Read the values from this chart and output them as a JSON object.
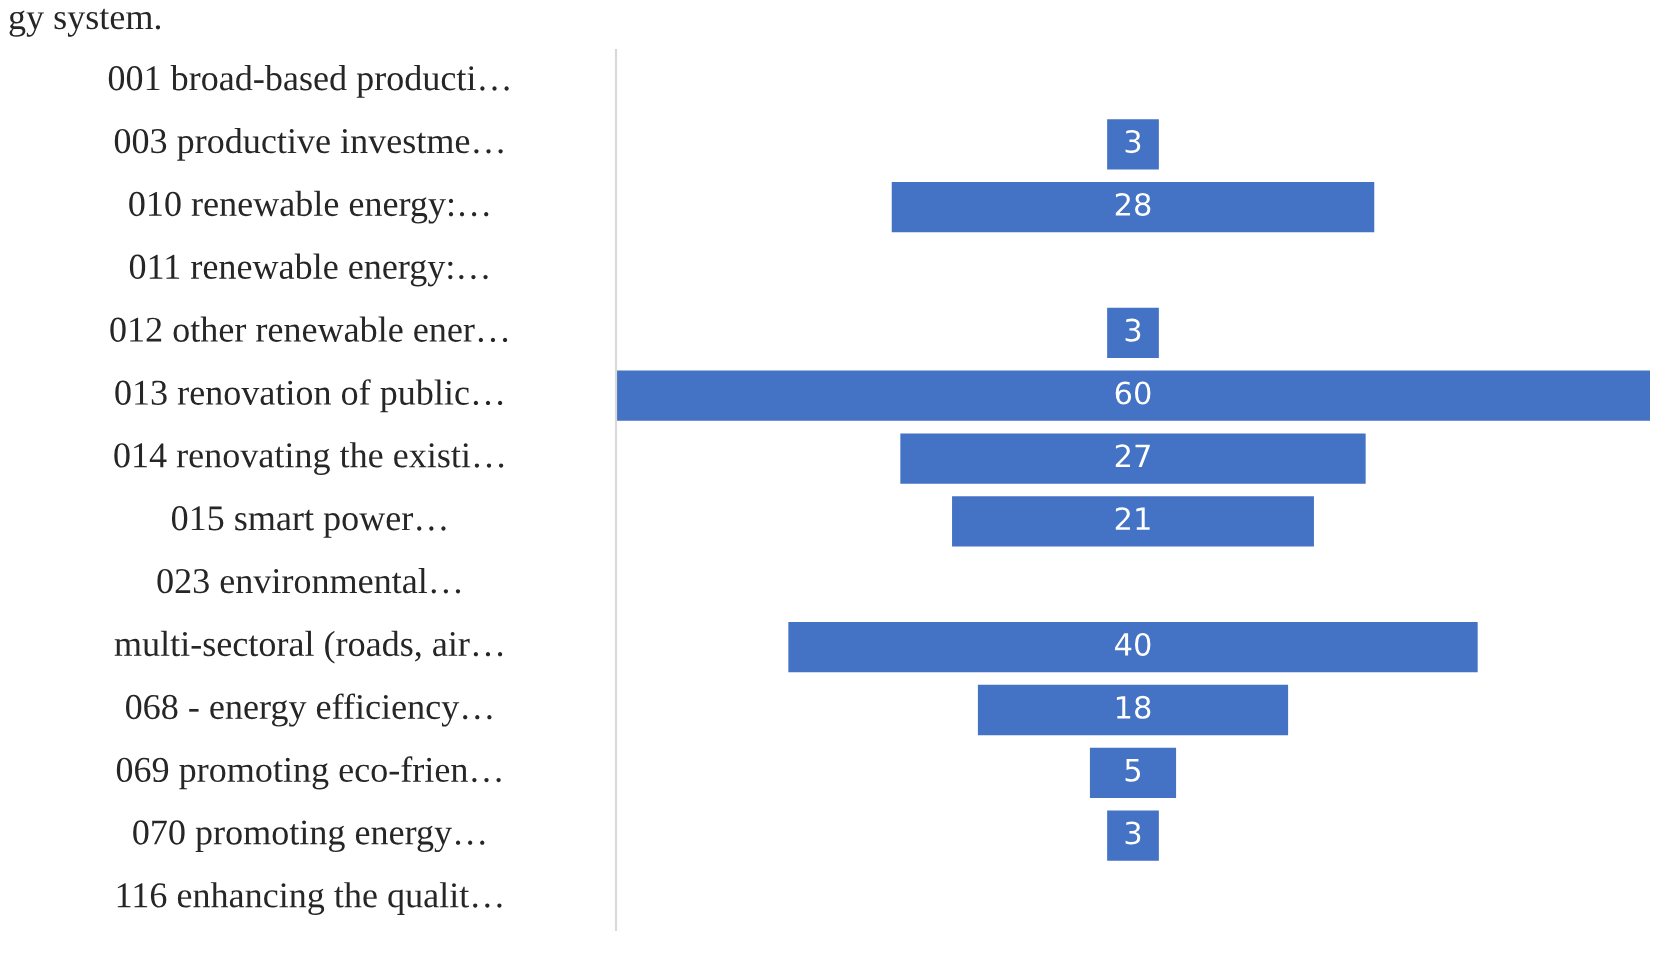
{
  "chart_data": {
    "type": "other",
    "categories": [
      "001 broad-based producti…",
      "003 productive investme…",
      "010 renewable energy:…",
      "011 renewable energy:…",
      "012 other renewable ener…",
      "013 renovation of public…",
      "014 renovating the existi…",
      "015 smart power…",
      "023 environmental…",
      "multi-sectoral (roads, air…",
      "068 - energy efficiency…",
      "069 promoting eco-frien…",
      "070 promoting energy…",
      "116 enhancing the qualit…"
    ],
    "values": [
      null,
      3,
      28,
      null,
      3,
      60,
      27,
      21,
      null,
      40,
      18,
      5,
      3,
      null
    ],
    "value_labels": [
      null,
      "3",
      "28",
      null,
      "3",
      "60",
      "27",
      "21",
      null,
      "40",
      "18",
      "5",
      "3",
      null
    ],
    "color": "#4472c4",
    "annotations": [
      "gy system."
    ]
  }
}
